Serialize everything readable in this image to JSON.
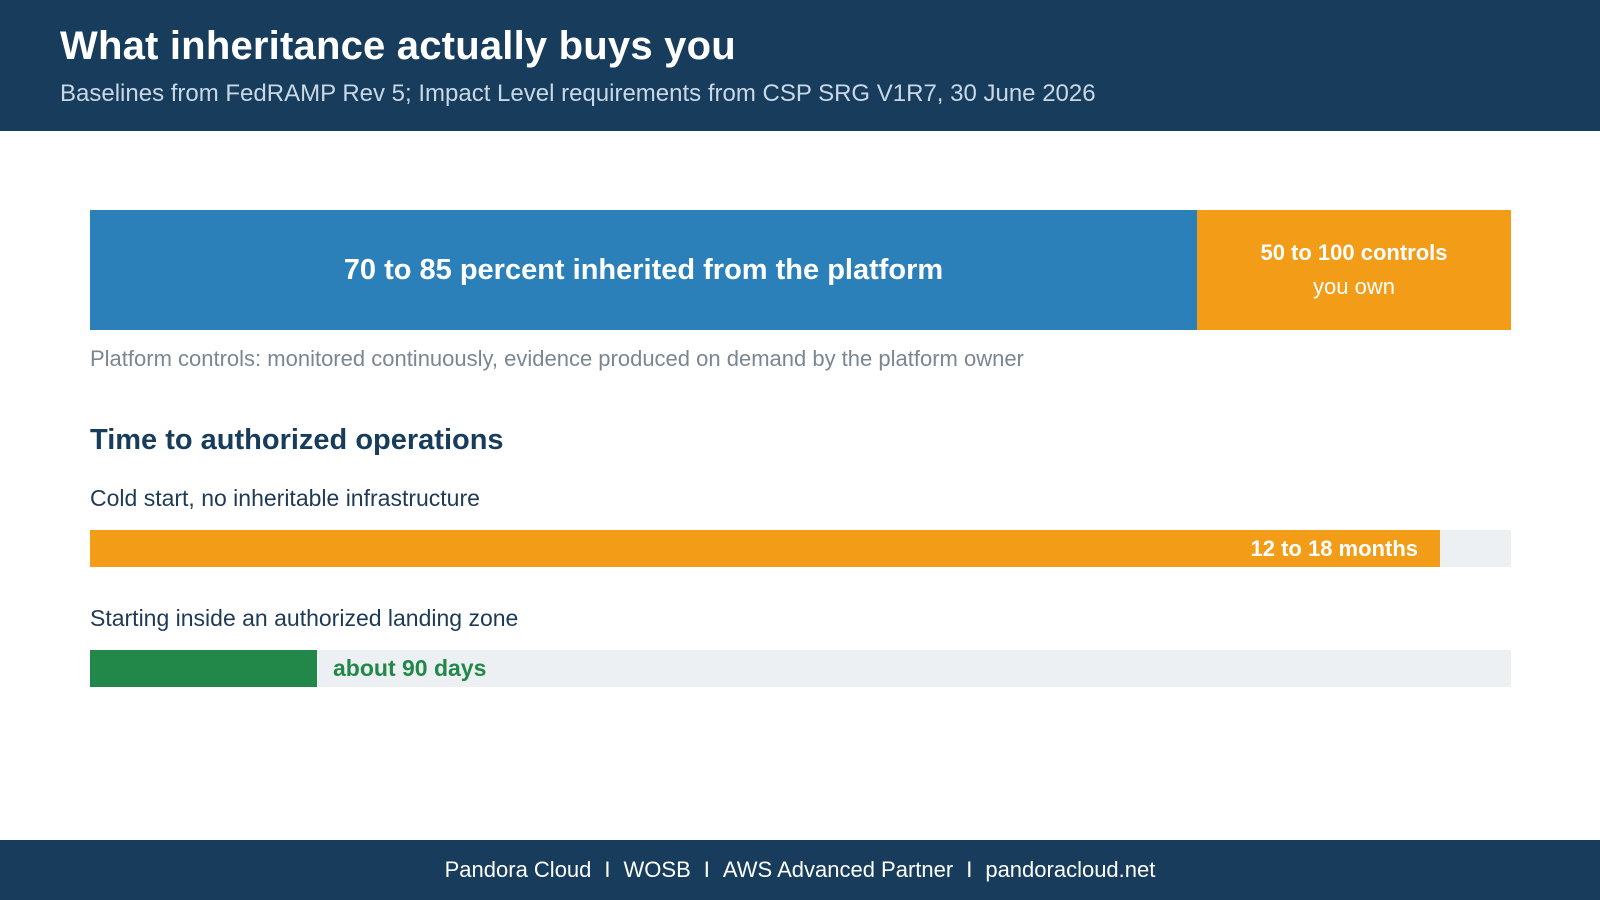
{
  "header": {
    "title": "What inheritance actually buys you",
    "subtitle": "Baselines from FedRAMP Rev 5; Impact Level requirements from CSP SRG V1R7, 30 June 2026"
  },
  "inheritance": {
    "inherited_label": "70 to 85 percent inherited from the platform",
    "owned_label_line1": "50 to 100 controls",
    "owned_label_line2": "you own",
    "note": "Platform controls: monitored continuously, evidence produced on demand by the platform owner"
  },
  "timeline": {
    "heading": "Time to authorized operations",
    "rows": [
      {
        "label": "Cold start, no inheritable infrastructure",
        "value_label": "12 to 18 months",
        "fraction": 0.95
      },
      {
        "label": "Starting inside an authorized landing zone",
        "value_label": "about 90 days",
        "fraction": 0.16
      }
    ]
  },
  "footer": {
    "items": [
      "Pandora Cloud",
      "WOSB",
      "AWS Advanced Partner",
      "pandoracloud.net"
    ],
    "separator": "I"
  },
  "colors": {
    "navy": "#173c5c",
    "blue": "#2b80b9",
    "orange": "#f39c17",
    "green": "#22884a",
    "track": "#edf0f3"
  }
}
